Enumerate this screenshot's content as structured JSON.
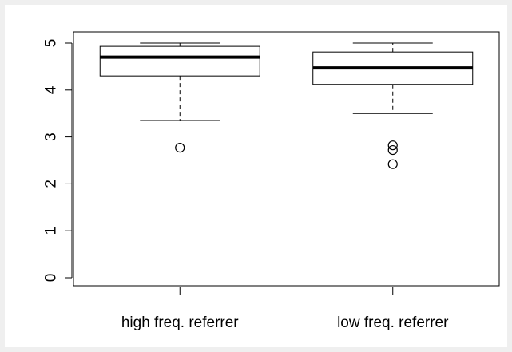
{
  "chart_data": {
    "type": "boxplot",
    "title": "",
    "xlabel": "",
    "ylabel": "",
    "ylim": [
      0,
      5
    ],
    "y_ticks": [
      "0",
      "1",
      "2",
      "3",
      "4",
      "5"
    ],
    "categories": [
      "high freq. referrer",
      "low freq. referrer"
    ],
    "boxes": [
      {
        "label": "high freq. referrer",
        "whisker_low": 3.35,
        "q1": 4.3,
        "median": 4.7,
        "q3": 4.93,
        "whisker_high": 5.0,
        "outliers": [
          2.77
        ]
      },
      {
        "label": "low freq. referrer",
        "whisker_low": 3.5,
        "q1": 4.12,
        "median": 4.47,
        "q3": 4.81,
        "whisker_high": 5.0,
        "outliers": [
          2.82,
          2.72,
          2.42
        ]
      }
    ],
    "grid": false,
    "legend": "none"
  }
}
